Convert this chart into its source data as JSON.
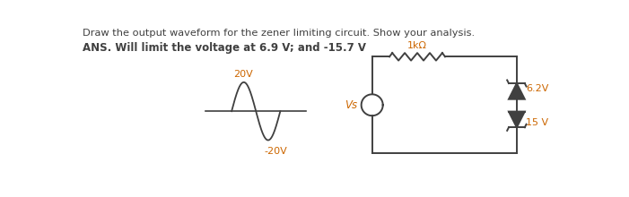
{
  "title_line1": "Draw the output waveform for the zener limiting circuit. Show your analysis.",
  "title_line2": "ANS. Will limit the voltage at 6.9 V; and -15.7 V",
  "sine_label_top": "20V",
  "sine_label_bottom": "-20V",
  "circuit_label_resistor": "1kΩ",
  "circuit_label_source": "Vs",
  "circuit_label_z1": "6.2V",
  "circuit_label_z2": "15 V",
  "text_color_title1": "#404040",
  "text_color_title2": "#cc6600",
  "label_color": "#cc6600",
  "background": "#ffffff",
  "sine_color": "#404040",
  "circuit_color": "#404040"
}
